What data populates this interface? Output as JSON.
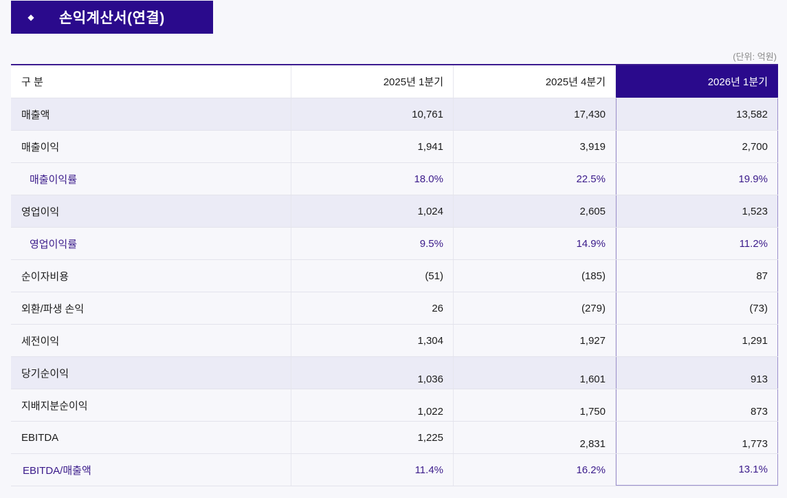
{
  "header": {
    "bullet": "◆",
    "title": "손익계산서(연결)",
    "unit_note": "(단위: 억원)"
  },
  "colors": {
    "accent": "#2a0a8c",
    "sub_text": "#3a1a8a",
    "shaded_row": "#ebebf6"
  },
  "table": {
    "columns": [
      "구 분",
      "2025년 1분기",
      "2025년 4분기",
      "2026년 1분기"
    ],
    "rows": [
      {
        "label": "매출액",
        "values": [
          "10,761",
          "17,430",
          "13,582"
        ]
      },
      {
        "label": "매출이익",
        "values": [
          "1,941",
          "3,919",
          "2,700"
        ]
      },
      {
        "label": "매출이익률",
        "values": [
          "18.0%",
          "22.5%",
          "19.9%"
        ]
      },
      {
        "label": "영업이익",
        "values": [
          "1,024",
          "2,605",
          "1,523"
        ]
      },
      {
        "label": "영업이익률",
        "values": [
          "9.5%",
          "14.9%",
          "11.2%"
        ]
      },
      {
        "label": "순이자비용",
        "values": [
          "(51)",
          "(185)",
          "87"
        ]
      },
      {
        "label": "외환/파생 손익",
        "values": [
          "26",
          "(279)",
          "(73)"
        ]
      },
      {
        "label": "세전이익",
        "values": [
          "1,304",
          "1,927",
          "1,291"
        ]
      },
      {
        "label": "당기순이익",
        "values": [
          "1,036",
          "1,601",
          "913"
        ]
      },
      {
        "label": "지배지분순이익",
        "values": [
          "1,022",
          "1,750",
          "873"
        ]
      },
      {
        "label": "EBITDA",
        "values": [
          "1,225",
          "2,831",
          "1,773"
        ]
      },
      {
        "label": "EBITDA/매출액",
        "values": [
          "11.4%",
          "16.2%",
          "13.1%"
        ]
      }
    ]
  }
}
